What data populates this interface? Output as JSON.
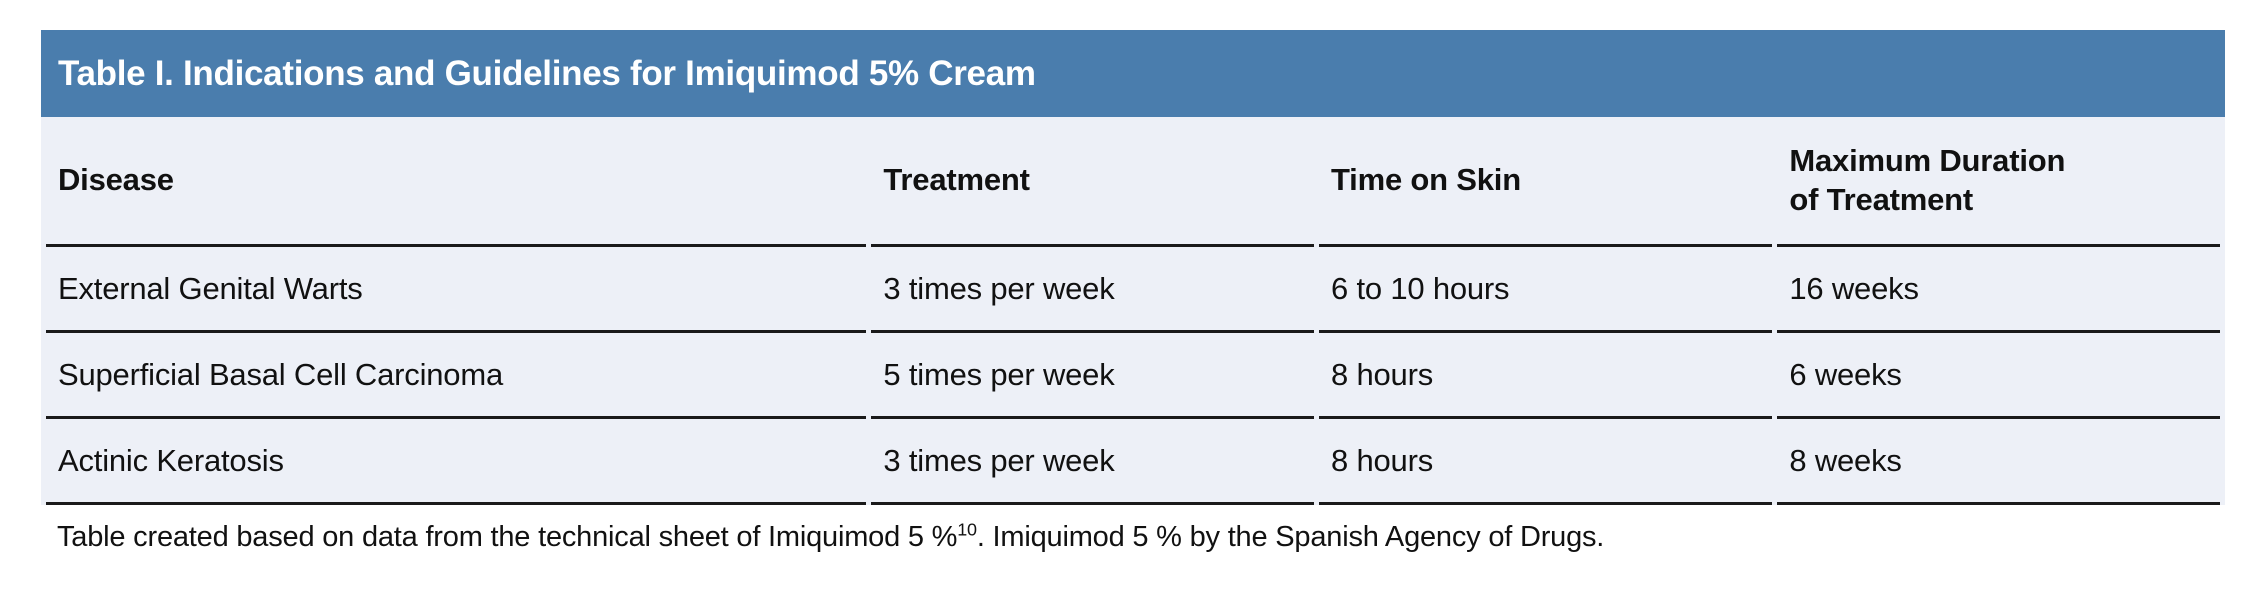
{
  "colors": {
    "title_bar_bg": "#4A7DAD",
    "title_text": "#FFFFFF",
    "table_body_bg": "#EDF0F7",
    "row_divider": "#1A1A1A",
    "body_text": "#111111",
    "page_bg": "#FFFFFF"
  },
  "table": {
    "title": "Table I. Indications and Guidelines for Imiquimod 5% Cream",
    "columns": [
      "Disease",
      "Treatment",
      "Time on Skin",
      "Maximum Duration\nof Treatment"
    ],
    "rows": [
      {
        "disease": "External Genital Warts",
        "treatment": "3 times per week",
        "time_on_skin": "6 to 10 hours",
        "max_duration": "16 weeks"
      },
      {
        "disease": "Superficial Basal Cell Carcinoma",
        "treatment": "5 times per week",
        "time_on_skin": "8 hours",
        "max_duration": "6 weeks"
      },
      {
        "disease": "Actinic Keratosis",
        "treatment": "3 times per week",
        "time_on_skin": "8 hours",
        "max_duration": "8 weeks"
      }
    ]
  },
  "footnote": {
    "part1": "Table created based on data from the technical sheet of Imiquimod 5 %",
    "superscript": "10",
    "part2": ". Imiquimod 5 % by the Spanish Agency of Drugs."
  }
}
